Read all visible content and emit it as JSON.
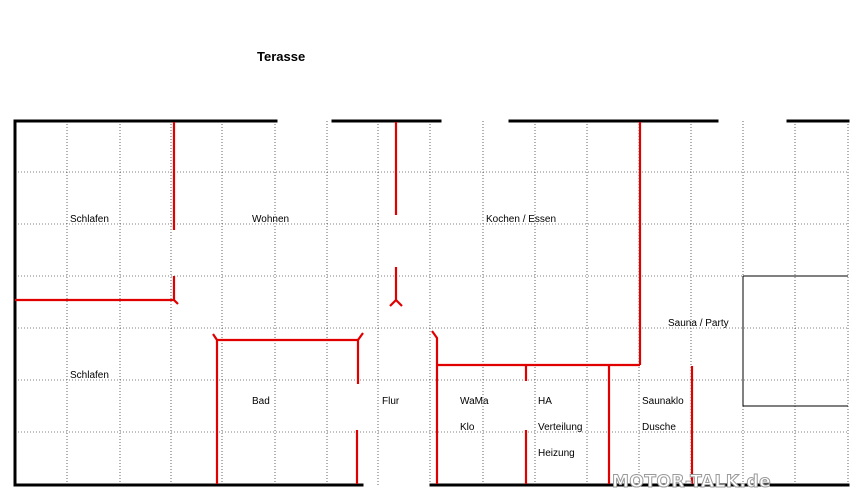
{
  "title": "Terasse",
  "rooms": [
    {
      "id": "schlafen-1",
      "label": "Schlafen"
    },
    {
      "id": "wohnen",
      "label": "Wohnen"
    },
    {
      "id": "kochen-essen",
      "label": "Kochen / Essen"
    },
    {
      "id": "sauna-party",
      "label": "Sauna / Party"
    },
    {
      "id": "schlafen-2",
      "label": "Schlafen"
    },
    {
      "id": "bad",
      "label": "Bad"
    },
    {
      "id": "flur",
      "label": "Flur"
    },
    {
      "id": "wama",
      "label": "WaMa"
    },
    {
      "id": "ha",
      "label": "HA"
    },
    {
      "id": "saunaklo",
      "label": "Saunaklo"
    },
    {
      "id": "klo",
      "label": "Klo"
    },
    {
      "id": "verteilung",
      "label": "Verteilung"
    },
    {
      "id": "dusche",
      "label": "Dusche"
    },
    {
      "id": "heizung",
      "label": "Heizung"
    }
  ],
  "watermark": "MOTOR-TALK.de",
  "colors": {
    "outer_wall": "#000000",
    "inner_wall": "#e00000",
    "grid": "#000000"
  }
}
